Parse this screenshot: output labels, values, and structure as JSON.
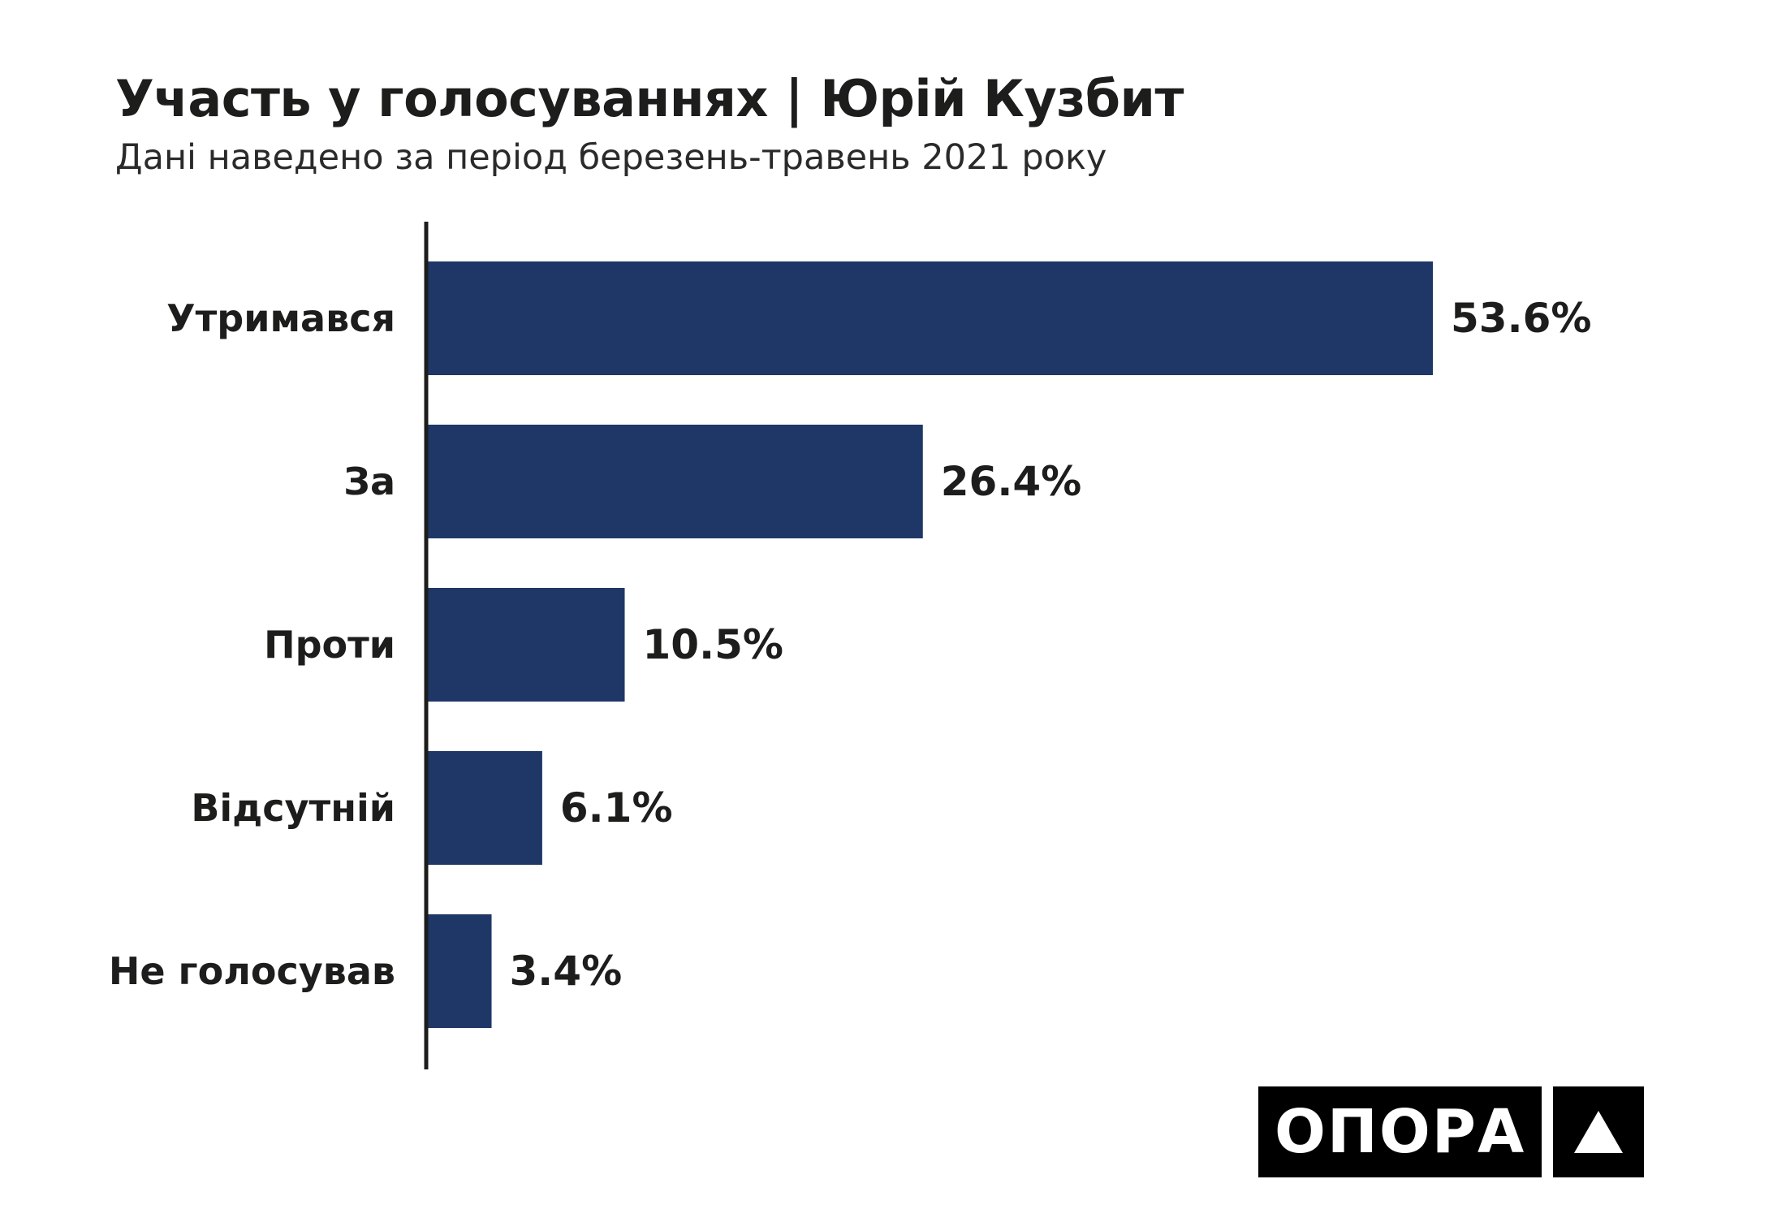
{
  "title": "Участь у голосуваннях | Юрій Кузбит",
  "subtitle": "Дані наведено за період березень-травень 2021 року",
  "logo": {
    "text": "ОПОРА",
    "icon": "triangle-icon"
  },
  "colors": {
    "bar": "#1f3766",
    "text": "#1d1d1b",
    "axis": "#1d1d1b",
    "logo_bg": "#000000",
    "logo_fg": "#ffffff"
  },
  "chart_data": {
    "type": "bar",
    "orientation": "horizontal",
    "categories": [
      "Утримався",
      "За",
      "Проти",
      "Відсутній",
      "Не голосував"
    ],
    "values": [
      53.6,
      26.4,
      10.5,
      6.1,
      3.4
    ],
    "value_labels": [
      "53.6%",
      "26.4%",
      "10.5%",
      "6.1%",
      "3.4%"
    ],
    "unit": "%",
    "xlim": [
      0,
      53.6
    ],
    "grid": false,
    "legend": "none"
  }
}
